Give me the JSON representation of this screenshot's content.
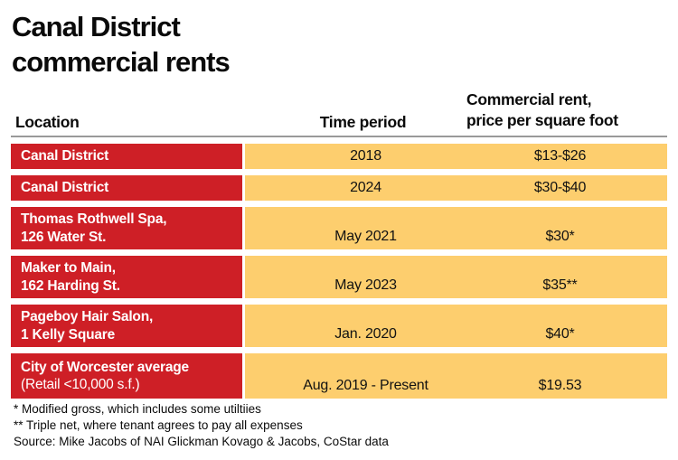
{
  "title": {
    "line1": "Canal District",
    "line2": "commercial rents"
  },
  "table": {
    "headers": {
      "location": "Location",
      "time_period": "Time period",
      "rent_line1": "Commercial rent,",
      "rent_line2": "price per square foot"
    },
    "rows": [
      {
        "location": "Canal District",
        "location_sub": "",
        "time": "2018",
        "rent": "$13-$26"
      },
      {
        "location": "Canal District",
        "location_sub": "",
        "time": "2024",
        "rent": "$30-$40"
      },
      {
        "location": "Thomas Rothwell Spa,",
        "location_sub": "126 Water St.",
        "time": "May 2021",
        "rent": "$30*"
      },
      {
        "location": "Maker to Main,",
        "location_sub": "162 Harding St.",
        "time": "May 2023",
        "rent": "$35**"
      },
      {
        "location": "Pageboy Hair Salon,",
        "location_sub": "1 Kelly Square",
        "time": "Jan. 2020",
        "rent": "$40*"
      },
      {
        "location": "City of Worcester average",
        "location_sub": "(Retail <10,000 s.f.)",
        "time": "Aug. 2019 - Present",
        "rent": "$19.53"
      }
    ]
  },
  "footnotes": [
    "* Modified gross, which includes some utiltiies",
    "** Triple net, where tenant agrees to pay all expenses",
    "Source: Mike Jacobs of NAI Glickman Kovago & Jacobs, CoStar data"
  ],
  "colors": {
    "red": "#CE1F26",
    "yellow": "#FDCE6E",
    "rule_gray": "#9A9A9A"
  },
  "chart_data": {
    "type": "table",
    "title": "Canal District commercial rents",
    "columns": [
      "Location",
      "Time period",
      "Commercial rent, price per square foot"
    ],
    "rows": [
      [
        "Canal District",
        "2018",
        "$13-$26"
      ],
      [
        "Canal District",
        "2024",
        "$30-$40"
      ],
      [
        "Thomas Rothwell Spa, 126 Water St.",
        "May 2021",
        "$30*"
      ],
      [
        "Maker to Main, 162 Harding St.",
        "May 2023",
        "$35**"
      ],
      [
        "Pageboy Hair Salon, 1 Kelly Square",
        "Jan. 2020",
        "$40*"
      ],
      [
        "City of Worcester average (Retail <10,000 s.f.)",
        "Aug. 2019 - Present",
        "$19.53"
      ]
    ],
    "notes": [
      "* Modified gross, which includes some utiltiies",
      "** Triple net, where tenant agrees to pay all expenses",
      "Source: Mike Jacobs of NAI Glickman Kovago & Jacobs, CoStar data"
    ],
    "layout": {
      "location_column_bg": "#CE1F26",
      "value_columns_bg": "#FDCE6E",
      "header_rule": true
    }
  }
}
